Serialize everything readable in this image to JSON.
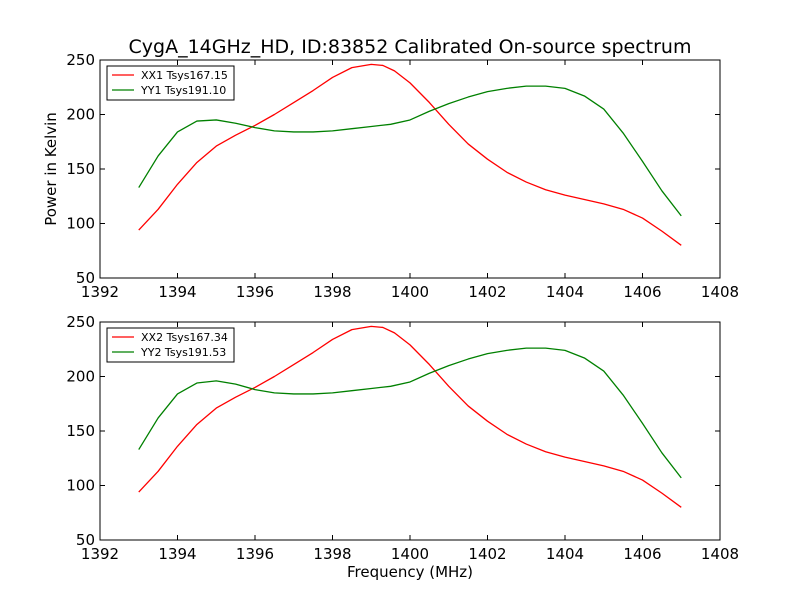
{
  "chart_data": {
    "type": "line",
    "title": "CygA_14GHz_HD, ID:83852 Calibrated On-source spectrum",
    "panels": [
      {
        "xlabel": "",
        "ylabel": "Power in Kelvin",
        "xlim": [
          1392,
          1408
        ],
        "ylim": [
          50,
          250
        ],
        "xticks": [
          "1392",
          "1394",
          "1396",
          "1398",
          "1400",
          "1402",
          "1404",
          "1406",
          "1408"
        ],
        "yticks": [
          "50",
          "100",
          "150",
          "200",
          "250"
        ],
        "legend": {
          "placement": "upper-left",
          "entries": [
            "XX1 Tsys167.15",
            "YY1 Tsys191.10"
          ]
        },
        "series": [
          {
            "name": "XX1 Tsys167.15",
            "color": "#ff0000",
            "x": [
              1393.0,
              1393.5,
              1394.0,
              1394.5,
              1395.0,
              1395.5,
              1396.0,
              1396.5,
              1397.0,
              1397.5,
              1398.0,
              1398.5,
              1399.0,
              1399.3,
              1399.6,
              1400.0,
              1400.5,
              1401.0,
              1401.5,
              1402.0,
              1402.5,
              1403.0,
              1403.5,
              1404.0,
              1404.5,
              1405.0,
              1405.5,
              1406.0,
              1406.5,
              1407.0
            ],
            "values": [
              94,
              113,
              136,
              156,
              171,
              181,
              190,
              200,
              211,
              222,
              234,
              243,
              246,
              245,
              240,
              229,
              211,
              191,
              173,
              159,
              147,
              138,
              131,
              126,
              122,
              118,
              113,
              105,
              93,
              80
            ]
          },
          {
            "name": "YY1 Tsys191.10",
            "color": "#008000",
            "x": [
              1393.0,
              1393.5,
              1394.0,
              1394.5,
              1395.0,
              1395.5,
              1396.0,
              1396.5,
              1397.0,
              1397.5,
              1398.0,
              1398.5,
              1399.0,
              1399.5,
              1400.0,
              1400.5,
              1401.0,
              1401.5,
              1402.0,
              1402.5,
              1403.0,
              1403.5,
              1404.0,
              1404.5,
              1405.0,
              1405.5,
              1406.0,
              1406.5,
              1407.0
            ],
            "values": [
              133,
              162,
              184,
              194,
              195,
              192,
              188,
              185,
              184,
              184,
              185,
              187,
              189,
              191,
              195,
              203,
              210,
              216,
              221,
              224,
              226,
              226,
              224,
              217,
              205,
              183,
              157,
              130,
              107
            ]
          }
        ]
      },
      {
        "xlabel": "Frequency (MHz)",
        "ylabel": "",
        "xlim": [
          1392,
          1408
        ],
        "ylim": [
          50,
          250
        ],
        "xticks": [
          "1392",
          "1394",
          "1396",
          "1398",
          "1400",
          "1402",
          "1404",
          "1406",
          "1408"
        ],
        "yticks": [
          "50",
          "100",
          "150",
          "200",
          "250"
        ],
        "legend": {
          "placement": "upper-left",
          "entries": [
            "XX2 Tsys167.34",
            "YY2 Tsys191.53"
          ]
        },
        "series": [
          {
            "name": "XX2 Tsys167.34",
            "color": "#ff0000",
            "x": [
              1393.0,
              1393.5,
              1394.0,
              1394.5,
              1395.0,
              1395.5,
              1396.0,
              1396.5,
              1397.0,
              1397.5,
              1398.0,
              1398.5,
              1399.0,
              1399.3,
              1399.6,
              1400.0,
              1400.5,
              1401.0,
              1401.5,
              1402.0,
              1402.5,
              1403.0,
              1403.5,
              1404.0,
              1404.5,
              1405.0,
              1405.5,
              1406.0,
              1406.5,
              1407.0
            ],
            "values": [
              94,
              113,
              136,
              156,
              171,
              181,
              190,
              200,
              211,
              222,
              234,
              243,
              246,
              245,
              240,
              229,
              211,
              191,
              173,
              159,
              147,
              138,
              131,
              126,
              122,
              118,
              113,
              105,
              93,
              80
            ]
          },
          {
            "name": "YY2 Tsys191.53",
            "color": "#008000",
            "x": [
              1393.0,
              1393.5,
              1394.0,
              1394.5,
              1395.0,
              1395.5,
              1396.0,
              1396.5,
              1397.0,
              1397.5,
              1398.0,
              1398.5,
              1399.0,
              1399.5,
              1400.0,
              1400.5,
              1401.0,
              1401.5,
              1402.0,
              1402.5,
              1403.0,
              1403.5,
              1404.0,
              1404.5,
              1405.0,
              1405.5,
              1406.0,
              1406.5,
              1407.0
            ],
            "values": [
              133,
              162,
              184,
              194,
              196,
              193,
              188,
              185,
              184,
              184,
              185,
              187,
              189,
              191,
              195,
              203,
              210,
              216,
              221,
              224,
              226,
              226,
              224,
              217,
              205,
              183,
              157,
              130,
              107
            ]
          }
        ]
      }
    ]
  }
}
